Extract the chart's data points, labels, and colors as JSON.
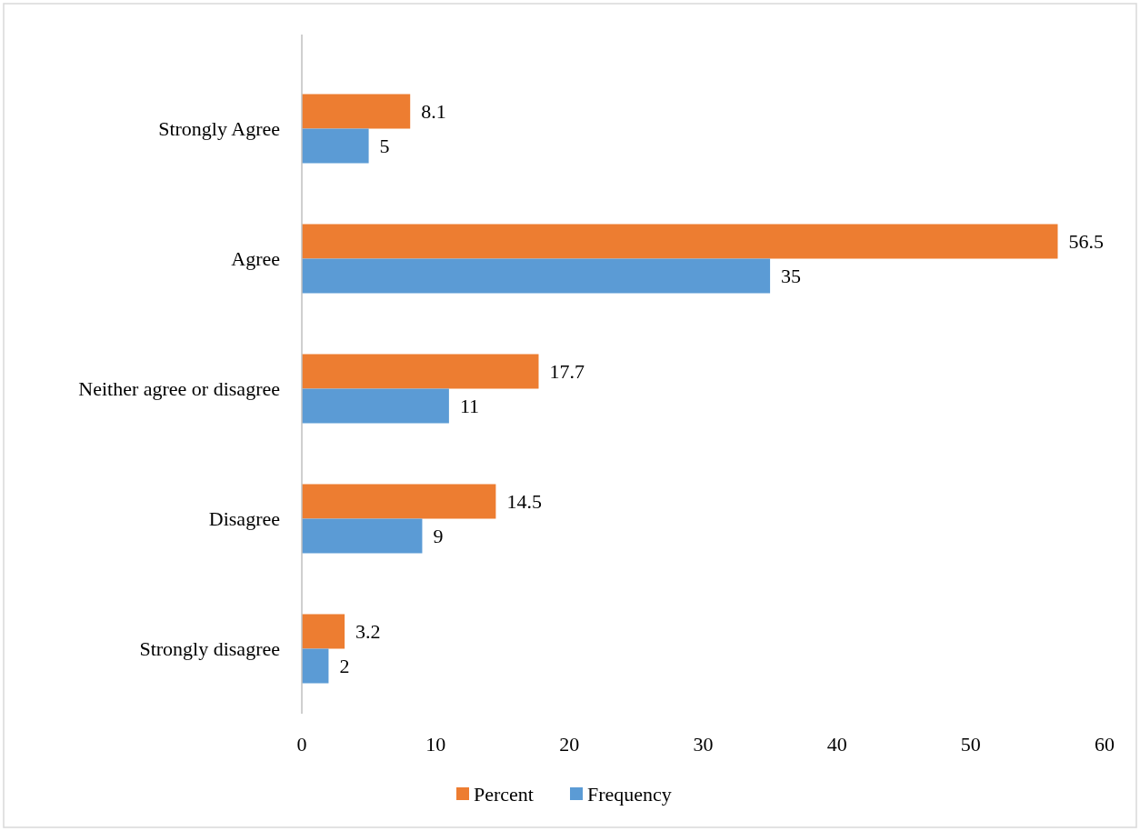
{
  "chart_data": {
    "type": "bar",
    "orientation": "horizontal",
    "categories": [
      "Strongly Agree",
      "Agree",
      "Neither agree or disagree",
      "Disagree",
      "Strongly disagree"
    ],
    "series": [
      {
        "name": "Percent",
        "color": "#ed7d31",
        "values": [
          8.1,
          56.5,
          17.7,
          14.5,
          3.2
        ]
      },
      {
        "name": "Frequency",
        "color": "#5b9bd5",
        "values": [
          5,
          35,
          11,
          9,
          2
        ]
      }
    ],
    "xlim": [
      0,
      60
    ],
    "xticks": [
      0,
      10,
      20,
      30,
      40,
      50,
      60
    ],
    "data_labels": true,
    "grid": false,
    "legend": "bottom"
  }
}
